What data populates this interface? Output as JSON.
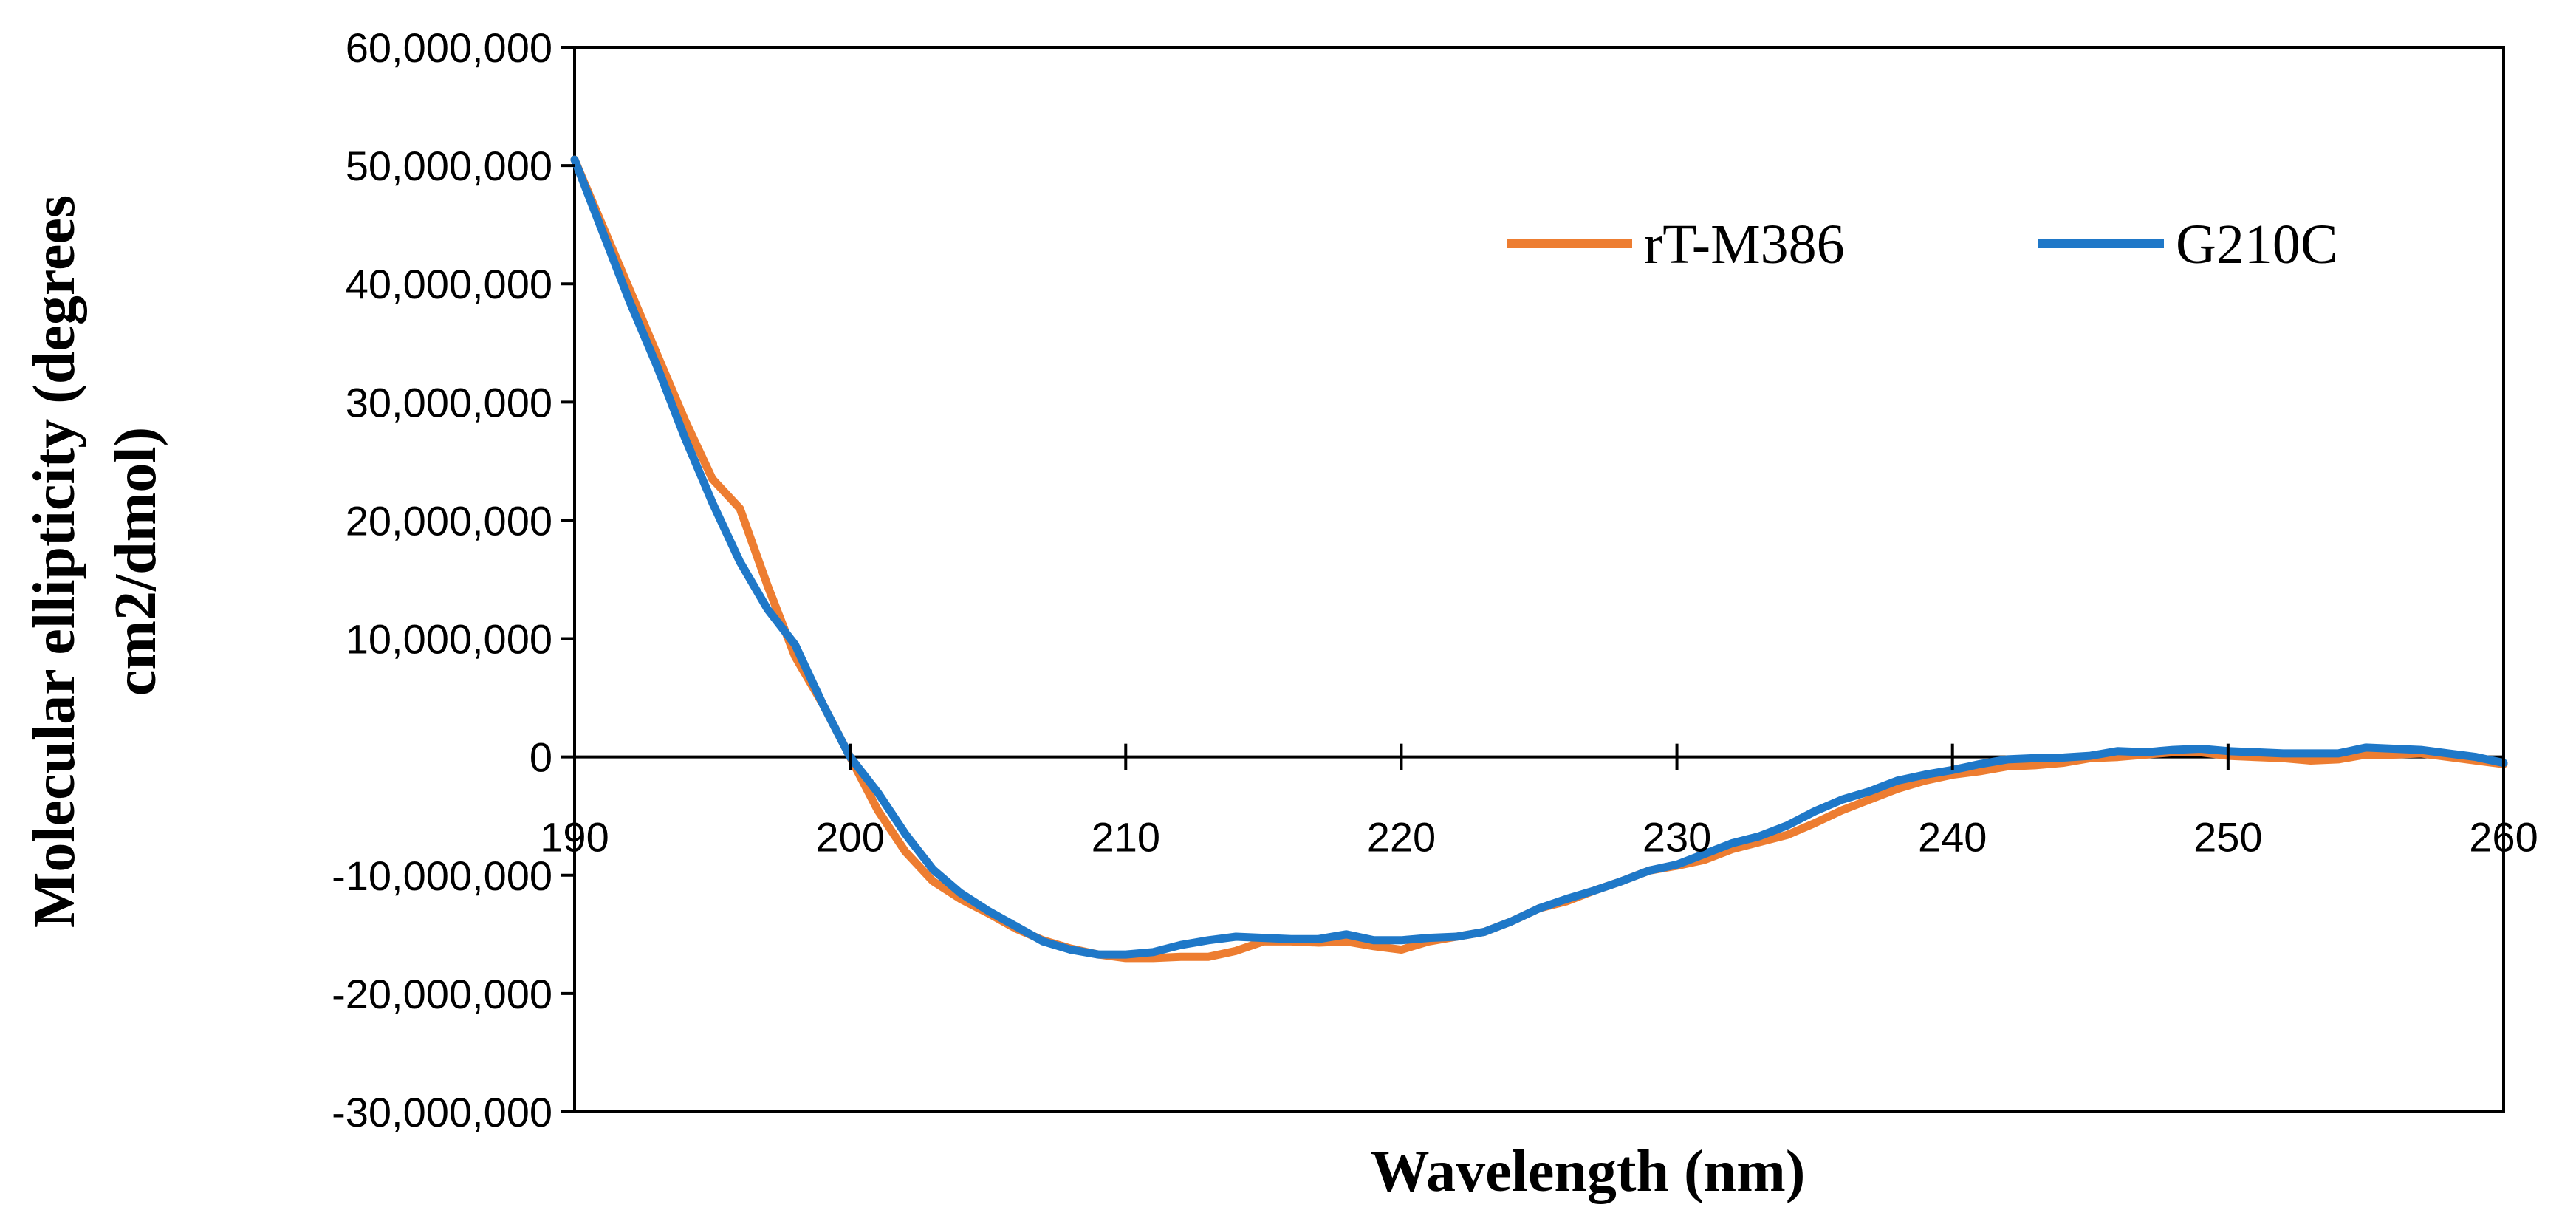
{
  "chart_data": {
    "type": "line",
    "title": "",
    "xlabel": "Wavelength (nm)",
    "ylabel_line1": "Molecular ellipticity (degrees",
    "ylabel_line2": "cm2/dmol)",
    "xlim": [
      190,
      260
    ],
    "ylim": [
      -30000000,
      60000000
    ],
    "x_ticks": [
      190,
      200,
      210,
      220,
      230,
      240,
      250,
      260
    ],
    "x_tick_labels": [
      "190",
      "200",
      "210",
      "220",
      "230",
      "240",
      "250",
      "260"
    ],
    "y_ticks": [
      60000000,
      50000000,
      40000000,
      30000000,
      20000000,
      10000000,
      0,
      -10000000,
      -20000000,
      -30000000
    ],
    "y_tick_labels": [
      "60,000,000",
      "50,000,000",
      "40,000,000",
      "30,000,000",
      "20,000,000",
      "10,000,000",
      "0",
      "-10,000,000",
      "-20,000,000",
      "-30,000,000"
    ],
    "grid": false,
    "legend_position": "top-right",
    "x": [
      190,
      191,
      192,
      193,
      194,
      195,
      196,
      197,
      198,
      199,
      200,
      201,
      202,
      203,
      204,
      205,
      206,
      207,
      208,
      209,
      210,
      211,
      212,
      213,
      214,
      215,
      216,
      217,
      218,
      219,
      220,
      221,
      222,
      223,
      224,
      225,
      226,
      227,
      228,
      229,
      230,
      231,
      232,
      233,
      234,
      235,
      236,
      237,
      238,
      239,
      240,
      241,
      242,
      243,
      244,
      245,
      246,
      247,
      248,
      249,
      250,
      251,
      252,
      253,
      254,
      255,
      256,
      257,
      258,
      259,
      260
    ],
    "series": [
      {
        "name": "rT-M386",
        "color": "#ED7D31",
        "values": [
          50500000,
          45000000,
          39500000,
          34000000,
          28500000,
          23500000,
          21000000,
          14500000,
          8500000,
          4500000,
          0,
          -4500000,
          -8000000,
          -10500000,
          -12000000,
          -13200000,
          -14500000,
          -15500000,
          -16200000,
          -16700000,
          -17000000,
          -17000000,
          -16900000,
          -16900000,
          -16400000,
          -15600000,
          -15600000,
          -15700000,
          -15600000,
          -16000000,
          -16300000,
          -15600000,
          -15200000,
          -14800000,
          -13900000,
          -12800000,
          -12200000,
          -11300000,
          -10500000,
          -9600000,
          -9200000,
          -8700000,
          -7800000,
          -7200000,
          -6600000,
          -5600000,
          -4500000,
          -3600000,
          -2700000,
          -2000000,
          -1500000,
          -1200000,
          -800000,
          -700000,
          -500000,
          -100000,
          0,
          200000,
          400000,
          400000,
          100000,
          0,
          -100000,
          -300000,
          -200000,
          200000,
          200000,
          300000,
          0,
          -300000,
          -600000
        ]
      },
      {
        "name": "G210C",
        "color": "#1F78C8",
        "values": [
          50500000,
          44500000,
          38500000,
          33000000,
          27000000,
          21500000,
          16500000,
          12500000,
          9500000,
          4500000,
          0,
          -3000000,
          -6500000,
          -9500000,
          -11500000,
          -13000000,
          -14300000,
          -15600000,
          -16300000,
          -16700000,
          -16700000,
          -16500000,
          -15900000,
          -15500000,
          -15200000,
          -15300000,
          -15400000,
          -15400000,
          -15000000,
          -15500000,
          -15500000,
          -15300000,
          -15200000,
          -14800000,
          -13900000,
          -12800000,
          -12000000,
          -11300000,
          -10500000,
          -9600000,
          -9100000,
          -8200000,
          -7300000,
          -6700000,
          -5800000,
          -4600000,
          -3600000,
          -2900000,
          -2000000,
          -1500000,
          -1100000,
          -600000,
          -200000,
          -100000,
          -50000,
          100000,
          500000,
          400000,
          600000,
          700000,
          500000,
          400000,
          300000,
          300000,
          300000,
          800000,
          700000,
          600000,
          300000,
          0,
          -500000
        ]
      }
    ]
  }
}
